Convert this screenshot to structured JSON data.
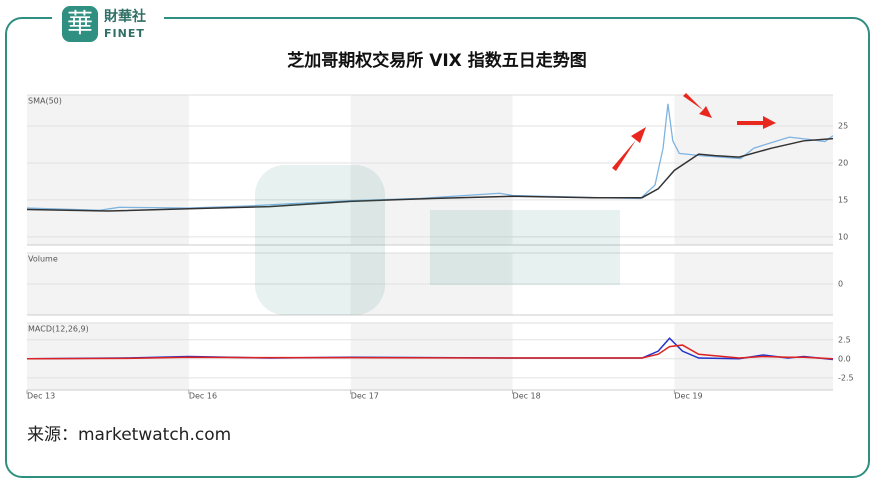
{
  "logo": {
    "mark": "華",
    "name": "財華社",
    "sub": "FINET"
  },
  "title": "芝加哥期权交易所 VIX 指数五日走势图",
  "source": "来源：marketwatch.com",
  "chart_data": [
    {
      "type": "line",
      "title": "SMA(50)",
      "ylim": [
        8.9,
        29.2
      ],
      "yticks": [
        10,
        15,
        20,
        25
      ],
      "series": [
        {
          "color": "#7fb3e0",
          "x": [
            0,
            0.45,
            0.57,
            1.0,
            1.38,
            2.0,
            2.43,
            2.92,
            3.0,
            3.54,
            3.79,
            3.88,
            3.93,
            3.96,
            3.99,
            4.03,
            4.16,
            4.41,
            4.49,
            4.71,
            4.83,
            4.93,
            4.98
          ],
          "values": [
            13.9,
            13.6,
            14.0,
            13.9,
            14.2,
            14.9,
            15.2,
            15.9,
            15.6,
            15.3,
            15.2,
            17,
            22,
            28,
            23,
            21.3,
            21.0,
            20.6,
            22.0,
            23.5,
            23.2,
            22.9,
            23.7
          ]
        },
        {
          "color": "#333333",
          "x": [
            0,
            0.5,
            1.0,
            1.5,
            2.0,
            2.5,
            3.0,
            3.5,
            3.8,
            3.9,
            4.0,
            4.15,
            4.25,
            4.4,
            4.6,
            4.8,
            4.98
          ],
          "values": [
            13.7,
            13.5,
            13.8,
            14.1,
            14.8,
            15.2,
            15.5,
            15.3,
            15.3,
            16.5,
            19.0,
            21.2,
            21.0,
            20.8,
            22.0,
            23.0,
            23.3
          ]
        }
      ]
    },
    {
      "type": "line",
      "title": "Volume",
      "ylim": [
        -1,
        1
      ],
      "yticks": [
        0
      ],
      "series": []
    },
    {
      "type": "line",
      "title": "MACD(12,26,9)",
      "ylim": [
        -4.1,
        4.7
      ],
      "yticks": [
        2.5,
        {
          "value": 0,
          "label": "0.0"
        },
        -2.5
      ],
      "xlim": [
        0,
        4.98
      ],
      "xticks": [
        {
          "value": 0,
          "label": "Dec 13"
        },
        {
          "value": 1,
          "label": "Dec 16"
        },
        {
          "value": 2,
          "label": "Dec 17"
        },
        {
          "value": 3,
          "label": "Dec 18"
        },
        {
          "value": 4,
          "label": "Dec 19"
        }
      ],
      "series": [
        {
          "color": "#2233cc",
          "x": [
            0,
            0.6,
            1.0,
            1.5,
            2.0,
            3.0,
            3.8,
            3.9,
            3.97,
            4.05,
            4.15,
            4.4,
            4.55,
            4.7,
            4.8,
            4.98
          ],
          "values": [
            0,
            0.1,
            0.3,
            0.1,
            0.2,
            0.1,
            0.1,
            1.0,
            2.7,
            1.0,
            0.1,
            0.0,
            0.5,
            0.1,
            0.3,
            -0.1
          ]
        },
        {
          "color": "#dd2222",
          "x": [
            0,
            0.6,
            1.0,
            1.5,
            2.0,
            3.0,
            3.8,
            3.9,
            3.97,
            4.05,
            4.15,
            4.4,
            4.55,
            4.7,
            4.8,
            4.98
          ],
          "values": [
            0,
            0.05,
            0.2,
            0.15,
            0.15,
            0.1,
            0.1,
            0.6,
            1.6,
            1.8,
            0.6,
            0.1,
            0.3,
            0.2,
            0.2,
            0.0
          ]
        }
      ]
    }
  ]
}
